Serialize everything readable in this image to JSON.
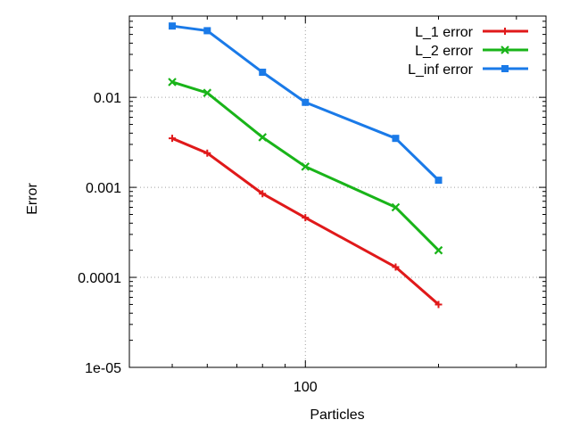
{
  "chart_data": {
    "type": "line",
    "xlabel": "Particles",
    "ylabel": "Error",
    "x_scale": "log",
    "y_scale": "log",
    "xlim": [
      40,
      350
    ],
    "ylim": [
      1e-05,
      0.08
    ],
    "x_ticks": [
      {
        "value": 100,
        "label": "100"
      }
    ],
    "y_ticks": [
      {
        "value": 1e-05,
        "label": "1e-05"
      },
      {
        "value": 0.0001,
        "label": "0.0001"
      },
      {
        "value": 0.001,
        "label": "0.001"
      },
      {
        "value": 0.01,
        "label": "0.01"
      }
    ],
    "grid": true,
    "legend_position": "top-right",
    "x": [
      50,
      60,
      80,
      100,
      160,
      200
    ],
    "series": [
      {
        "name": "L_1 error",
        "color": "#e0191a",
        "marker": "plus",
        "values": [
          0.0035,
          0.0024,
          0.00085,
          0.00046,
          0.00013,
          5e-05
        ]
      },
      {
        "name": "L_2 error",
        "color": "#19b419",
        "marker": "cross",
        "values": [
          0.0148,
          0.0112,
          0.0036,
          0.0017,
          0.0006,
          0.0002
        ]
      },
      {
        "name": "L_inf error",
        "color": "#1a7ae8",
        "marker": "square",
        "values": [
          0.062,
          0.055,
          0.019,
          0.0088,
          0.0035,
          0.0012
        ]
      }
    ]
  }
}
